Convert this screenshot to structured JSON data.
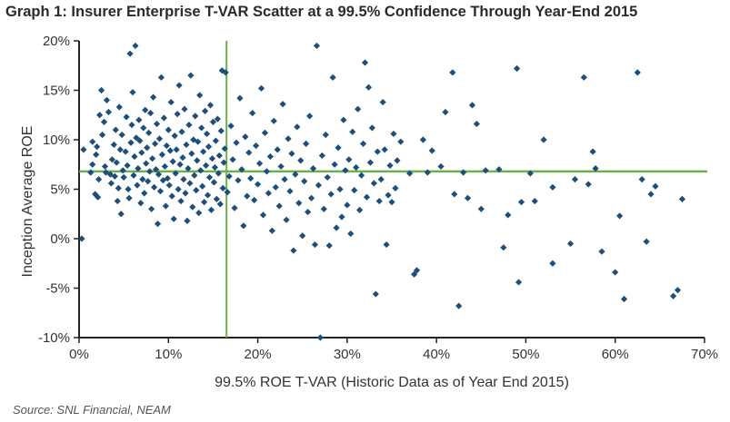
{
  "title": "Graph 1: Insurer Enterprise T-VAR Scatter at a 99.5% Confidence Through Year-End 2015",
  "source": "Source: SNL Financial, NEAM",
  "colors": {
    "points": "#1d4f7a",
    "reference": "#6ab04c",
    "axis": "#222222"
  },
  "chart_data": {
    "type": "scatter",
    "title": "Graph 1: Insurer Enterprise T-VAR Scatter at a 99.5% Confidence Through Year-End 2015",
    "xlabel": "99.5% ROE T-VAR (Historic Data as of Year End 2015)",
    "ylabel": "Inception Average ROE",
    "xlim": [
      0,
      70
    ],
    "ylim": [
      -10,
      20
    ],
    "xticks": [
      0,
      10,
      20,
      30,
      40,
      50,
      60,
      70
    ],
    "xtick_labels": [
      "0%",
      "10%",
      "20%",
      "30%",
      "40%",
      "50%",
      "60%",
      "70%"
    ],
    "yticks": [
      -10,
      -5,
      0,
      5,
      10,
      15,
      20
    ],
    "ytick_labels": [
      "-10%",
      "-5%",
      "0%",
      "5%",
      "10%",
      "15%",
      "20%"
    ],
    "reference_lines": {
      "x": 16.5,
      "y": 6.8
    },
    "grid": false,
    "legend": "none",
    "points": [
      [
        0.3,
        0.0
      ],
      [
        0.5,
        9.0
      ],
      [
        1.3,
        6.7
      ],
      [
        1.5,
        9.8
      ],
      [
        1.5,
        7.5
      ],
      [
        1.8,
        4.5
      ],
      [
        1.9,
        8.5
      ],
      [
        2.0,
        9.3
      ],
      [
        2.1,
        4.2
      ],
      [
        2.2,
        6.0
      ],
      [
        2.3,
        12.5
      ],
      [
        2.5,
        15.0
      ],
      [
        2.6,
        10.5
      ],
      [
        2.8,
        11.8
      ],
      [
        2.9,
        7.3
      ],
      [
        3.0,
        6.7
      ],
      [
        3.1,
        14.0
      ],
      [
        3.3,
        12.8
      ],
      [
        3.5,
        6.5
      ],
      [
        3.6,
        5.6
      ],
      [
        3.7,
        8.0
      ],
      [
        3.9,
        9.5
      ],
      [
        4.0,
        6.3
      ],
      [
        4.1,
        11.0
      ],
      [
        4.2,
        7.7
      ],
      [
        4.3,
        3.8
      ],
      [
        4.4,
        5.1
      ],
      [
        4.5,
        13.3
      ],
      [
        4.6,
        9.0
      ],
      [
        4.7,
        2.5
      ],
      [
        4.8,
        10.5
      ],
      [
        4.9,
        6.9
      ],
      [
        5.0,
        6.2
      ],
      [
        5.2,
        8.8
      ],
      [
        5.3,
        12.3
      ],
      [
        5.4,
        7.4
      ],
      [
        5.5,
        5.0
      ],
      [
        5.6,
        4.1
      ],
      [
        5.7,
        18.7
      ],
      [
        5.8,
        9.7
      ],
      [
        5.9,
        11.5
      ],
      [
        6.0,
        14.8
      ],
      [
        6.1,
        6.4
      ],
      [
        6.2,
        8.3
      ],
      [
        6.3,
        19.5
      ],
      [
        6.4,
        10.2
      ],
      [
        6.5,
        5.4
      ],
      [
        6.6,
        7.1
      ],
      [
        6.7,
        12.0
      ],
      [
        6.8,
        9.9
      ],
      [
        6.9,
        3.6
      ],
      [
        7.0,
        8.7
      ],
      [
        7.1,
        6.0
      ],
      [
        7.2,
        11.2
      ],
      [
        7.3,
        4.6
      ],
      [
        7.4,
        13.0
      ],
      [
        7.5,
        7.6
      ],
      [
        7.6,
        9.2
      ],
      [
        7.7,
        5.8
      ],
      [
        7.8,
        10.7
      ],
      [
        7.9,
        6.8
      ],
      [
        8.0,
        12.7
      ],
      [
        8.1,
        3.0
      ],
      [
        8.2,
        8.1
      ],
      [
        8.3,
        14.3
      ],
      [
        8.4,
        5.2
      ],
      [
        8.5,
        9.6
      ],
      [
        8.6,
        7.0
      ],
      [
        8.7,
        11.6
      ],
      [
        8.8,
        1.5
      ],
      [
        8.9,
        6.5
      ],
      [
        9.0,
        10.1
      ],
      [
        9.1,
        4.8
      ],
      [
        9.2,
        16.3
      ],
      [
        9.3,
        8.5
      ],
      [
        9.4,
        5.9
      ],
      [
        9.5,
        12.2
      ],
      [
        9.6,
        7.3
      ],
      [
        9.7,
        3.3
      ],
      [
        9.8,
        9.4
      ],
      [
        9.9,
        6.1
      ],
      [
        10.0,
        11.0
      ],
      [
        10.1,
        5.4
      ],
      [
        10.2,
        8.9
      ],
      [
        10.3,
        13.8
      ],
      [
        10.4,
        4.3
      ],
      [
        10.5,
        7.8
      ],
      [
        10.6,
        2.0
      ],
      [
        10.7,
        10.4
      ],
      [
        10.8,
        6.6
      ],
      [
        10.9,
        9.0
      ],
      [
        11.0,
        12.6
      ],
      [
        11.1,
        5.0
      ],
      [
        11.2,
        15.5
      ],
      [
        11.3,
        7.5
      ],
      [
        11.4,
        3.8
      ],
      [
        11.5,
        10.8
      ],
      [
        11.6,
        8.2
      ],
      [
        11.7,
        6.0
      ],
      [
        11.8,
        13.1
      ],
      [
        11.9,
        4.6
      ],
      [
        12.0,
        9.5
      ],
      [
        12.1,
        1.8
      ],
      [
        12.2,
        7.1
      ],
      [
        12.3,
        11.5
      ],
      [
        12.4,
        5.6
      ],
      [
        12.5,
        16.5
      ],
      [
        12.6,
        8.6
      ],
      [
        12.7,
        3.2
      ],
      [
        12.8,
        10.0
      ],
      [
        12.9,
        6.4
      ],
      [
        13.0,
        12.4
      ],
      [
        13.1,
        4.9
      ],
      [
        13.2,
        7.9
      ],
      [
        13.3,
        9.8
      ],
      [
        13.4,
        2.6
      ],
      [
        13.5,
        14.5
      ],
      [
        13.6,
        6.9
      ],
      [
        13.7,
        11.2
      ],
      [
        13.8,
        5.3
      ],
      [
        13.9,
        8.8
      ],
      [
        14.0,
        3.7
      ],
      [
        14.1,
        12.9
      ],
      [
        14.2,
        7.4
      ],
      [
        14.3,
        10.6
      ],
      [
        14.4,
        4.4
      ],
      [
        14.5,
        9.3
      ],
      [
        14.6,
        6.2
      ],
      [
        14.7,
        13.5
      ],
      [
        14.8,
        2.9
      ],
      [
        14.9,
        8.1
      ],
      [
        15.0,
        11.8
      ],
      [
        15.1,
        5.7
      ],
      [
        15.2,
        7.2
      ],
      [
        15.3,
        9.9
      ],
      [
        15.4,
        4.0
      ],
      [
        15.5,
        12.1
      ],
      [
        15.6,
        6.6
      ],
      [
        15.7,
        8.4
      ],
      [
        15.8,
        3.5
      ],
      [
        15.9,
        10.9
      ],
      [
        16.0,
        17.0
      ],
      [
        16.1,
        5.1
      ],
      [
        16.2,
        7.7
      ],
      [
        16.3,
        9.1
      ],
      [
        16.4,
        16.8
      ],
      [
        16.6,
        4.7
      ],
      [
        16.8,
        6.3
      ],
      [
        17.0,
        11.4
      ],
      [
        17.2,
        8.0
      ],
      [
        17.4,
        3.1
      ],
      [
        17.6,
        9.7
      ],
      [
        17.8,
        5.9
      ],
      [
        18.0,
        14.2
      ],
      [
        18.2,
        7.0
      ],
      [
        18.4,
        1.3
      ],
      [
        18.6,
        10.3
      ],
      [
        18.8,
        4.3
      ],
      [
        19.0,
        8.7
      ],
      [
        19.2,
        6.1
      ],
      [
        19.4,
        12.7
      ],
      [
        19.6,
        3.9
      ],
      [
        19.8,
        9.4
      ],
      [
        20.0,
        5.5
      ],
      [
        20.2,
        7.6
      ],
      [
        20.4,
        15.2
      ],
      [
        20.6,
        2.4
      ],
      [
        20.8,
        10.7
      ],
      [
        21.0,
        6.8
      ],
      [
        21.2,
        4.6
      ],
      [
        21.4,
        8.3
      ],
      [
        21.6,
        0.8
      ],
      [
        21.8,
        11.9
      ],
      [
        22.0,
        5.2
      ],
      [
        22.2,
        9.0
      ],
      [
        22.4,
        3.3
      ],
      [
        22.6,
        7.3
      ],
      [
        22.8,
        13.6
      ],
      [
        23.0,
        6.0
      ],
      [
        23.2,
        1.9
      ],
      [
        23.4,
        10.1
      ],
      [
        23.6,
        4.8
      ],
      [
        23.8,
        8.6
      ],
      [
        24.0,
        -1.2
      ],
      [
        24.2,
        6.5
      ],
      [
        24.4,
        11.3
      ],
      [
        24.6,
        3.6
      ],
      [
        24.8,
        7.9
      ],
      [
        25.0,
        0.3
      ],
      [
        25.2,
        5.8
      ],
      [
        25.4,
        9.6
      ],
      [
        25.6,
        2.7
      ],
      [
        25.8,
        12.4
      ],
      [
        26.0,
        4.1
      ],
      [
        26.2,
        7.1
      ],
      [
        26.4,
        -0.6
      ],
      [
        26.6,
        19.5
      ],
      [
        26.8,
        5.4
      ],
      [
        27.0,
        -10.0
      ],
      [
        27.2,
        8.4
      ],
      [
        27.4,
        3.0
      ],
      [
        27.6,
        10.5
      ],
      [
        27.8,
        6.2
      ],
      [
        28.0,
        -0.7
      ],
      [
        28.2,
        4.5
      ],
      [
        28.4,
        16.3
      ],
      [
        28.6,
        7.5
      ],
      [
        28.8,
        1.1
      ],
      [
        29.0,
        9.2
      ],
      [
        29.2,
        5.0
      ],
      [
        29.4,
        2.2
      ],
      [
        29.6,
        12.0
      ],
      [
        29.8,
        6.9
      ],
      [
        30.0,
        3.4
      ],
      [
        30.2,
        8.0
      ],
      [
        30.4,
        0.5
      ],
      [
        30.6,
        10.8
      ],
      [
        30.8,
        4.9
      ],
      [
        31.0,
        7.2
      ],
      [
        31.2,
        13.1
      ],
      [
        31.4,
        2.9
      ],
      [
        31.6,
        6.4
      ],
      [
        31.8,
        9.6
      ],
      [
        32.0,
        17.8
      ],
      [
        32.2,
        4.2
      ],
      [
        32.4,
        15.3
      ],
      [
        32.6,
        7.7
      ],
      [
        32.8,
        11.2
      ],
      [
        33.0,
        5.6
      ],
      [
        33.2,
        -5.6
      ],
      [
        33.4,
        8.8
      ],
      [
        33.6,
        3.8
      ],
      [
        33.8,
        6.0
      ],
      [
        34.0,
        13.8
      ],
      [
        34.2,
        9.0
      ],
      [
        34.4,
        -0.6
      ],
      [
        34.6,
        4.4
      ],
      [
        34.8,
        7.4
      ],
      [
        35.0,
        3.7
      ],
      [
        35.2,
        10.6
      ],
      [
        35.4,
        5.1
      ],
      [
        35.6,
        7.9
      ],
      [
        36.0,
        9.8
      ],
      [
        37.0,
        6.6
      ],
      [
        37.5,
        -3.6
      ],
      [
        37.8,
        -3.2
      ],
      [
        38.5,
        10.0
      ],
      [
        39.0,
        6.7
      ],
      [
        39.5,
        8.9
      ],
      [
        40.5,
        7.3
      ],
      [
        41.0,
        12.8
      ],
      [
        41.8,
        16.8
      ],
      [
        42.0,
        4.5
      ],
      [
        42.5,
        -6.8
      ],
      [
        43.0,
        6.7
      ],
      [
        43.5,
        4.1
      ],
      [
        44.0,
        13.5
      ],
      [
        44.5,
        11.6
      ],
      [
        45.0,
        3.0
      ],
      [
        45.5,
        6.9
      ],
      [
        47.0,
        7.0
      ],
      [
        47.5,
        -0.9
      ],
      [
        48.0,
        2.4
      ],
      [
        49.0,
        17.2
      ],
      [
        49.2,
        -4.4
      ],
      [
        49.5,
        3.7
      ],
      [
        50.5,
        6.6
      ],
      [
        51.0,
        3.8
      ],
      [
        52.0,
        10.0
      ],
      [
        53.0,
        -2.5
      ],
      [
        53.0,
        5.2
      ],
      [
        55.0,
        -0.5
      ],
      [
        55.5,
        6.0
      ],
      [
        56.5,
        16.3
      ],
      [
        57.0,
        5.5
      ],
      [
        57.5,
        8.8
      ],
      [
        57.8,
        7.1
      ],
      [
        58.5,
        -1.3
      ],
      [
        60.0,
        -3.4
      ],
      [
        60.5,
        2.3
      ],
      [
        61.0,
        -6.1
      ],
      [
        62.5,
        16.8
      ],
      [
        63.0,
        6.0
      ],
      [
        63.5,
        -0.3
      ],
      [
        64.0,
        4.5
      ],
      [
        64.5,
        5.3
      ],
      [
        66.5,
        -5.8
      ],
      [
        67.0,
        -5.2
      ],
      [
        67.5,
        4.0
      ]
    ]
  }
}
